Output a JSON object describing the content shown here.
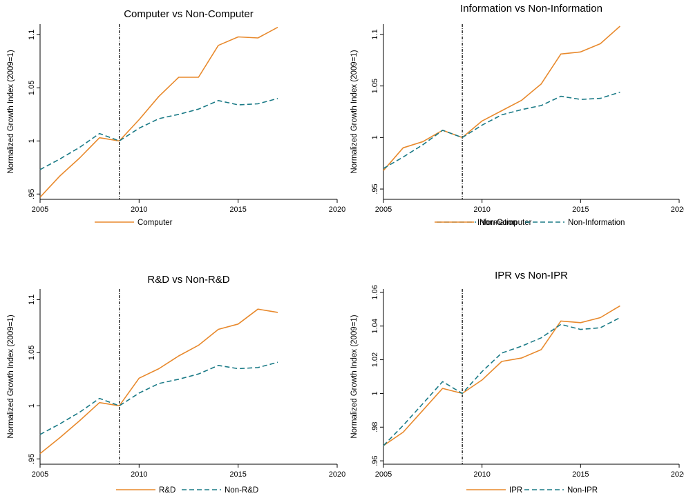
{
  "colors": {
    "series1": "#e8892c",
    "series2": "#1a7a86",
    "marker": "#000000"
  },
  "chart_data": [
    {
      "type": "line",
      "title": "Computer vs Non-Computer",
      "xlabel": "",
      "ylabel": "Normalized Growth Index (2009=1)",
      "xlim": [
        2005,
        2020
      ],
      "ylim": [
        0.945,
        1.11
      ],
      "xticks": [
        2005,
        2010,
        2015,
        2020
      ],
      "xtick_labels": [
        "2005",
        "2010",
        "2015",
        "2020"
      ],
      "yticks": [
        0.95,
        1,
        1.05,
        1.1
      ],
      "ytick_labels": [
        ".95",
        "1",
        "1.05",
        "1.1"
      ],
      "vline": 2009,
      "x": [
        2005,
        2006,
        2007,
        2008,
        2009,
        2010,
        2011,
        2012,
        2013,
        2014,
        2015,
        2016,
        2017
      ],
      "series": [
        {
          "name": "Computer",
          "style": "solid",
          "values": [
            0.947,
            0.967,
            0.984,
            1.003,
            1.0,
            1.02,
            1.042,
            1.06,
            1.06,
            1.09,
            1.098,
            1.097,
            1.107
          ]
        },
        {
          "name": "Non-Computer",
          "style": "dashed",
          "values": [
            0.973,
            0.983,
            0.994,
            1.007,
            1.0,
            1.012,
            1.021,
            1.025,
            1.03,
            1.038,
            1.034,
            1.035,
            1.04
          ]
        }
      ]
    },
    {
      "type": "line",
      "title": "Information vs Non-Information",
      "xlabel": "",
      "ylabel": "Normalized Growth Index (2009=1)",
      "xlim": [
        2005,
        2020
      ],
      "ylim": [
        0.94,
        1.11
      ],
      "xticks": [
        2005,
        2010,
        2015,
        2020
      ],
      "xtick_labels": [
        "2005",
        "2010",
        "2015",
        "2020"
      ],
      "yticks": [
        0.95,
        1,
        1.05,
        1.1
      ],
      "ytick_labels": [
        ".95",
        "1",
        "1.05",
        "1.1"
      ],
      "vline": 2009,
      "x": [
        2005,
        2006,
        2007,
        2008,
        2009,
        2010,
        2011,
        2012,
        2013,
        2014,
        2015,
        2016,
        2017
      ],
      "series": [
        {
          "name": "Information",
          "style": "solid",
          "values": [
            0.968,
            0.99,
            0.996,
            1.007,
            1.0,
            1.016,
            1.026,
            1.036,
            1.052,
            1.081,
            1.083,
            1.091,
            1.108
          ]
        },
        {
          "name": "Non-Information",
          "style": "dashed",
          "values": [
            0.97,
            0.981,
            0.993,
            1.007,
            1.0,
            1.012,
            1.022,
            1.027,
            1.031,
            1.04,
            1.037,
            1.038,
            1.044
          ]
        }
      ]
    },
    {
      "type": "line",
      "title": "R&D vs Non-R&D",
      "xlabel": "",
      "ylabel": "Normalized Growth Index (2009=1)",
      "xlim": [
        2005,
        2020
      ],
      "ylim": [
        0.945,
        1.11
      ],
      "xticks": [
        2005,
        2010,
        2015,
        2020
      ],
      "xtick_labels": [
        "2005",
        "2010",
        "2015",
        "2020"
      ],
      "yticks": [
        0.95,
        1,
        1.05,
        1.1
      ],
      "ytick_labels": [
        ".95",
        "1",
        "1.05",
        "1.1"
      ],
      "vline": 2009,
      "x": [
        2005,
        2006,
        2007,
        2008,
        2009,
        2010,
        2011,
        2012,
        2013,
        2014,
        2015,
        2016,
        2017
      ],
      "series": [
        {
          "name": "R&D",
          "style": "solid",
          "values": [
            0.955,
            0.97,
            0.986,
            1.003,
            1.0,
            1.026,
            1.035,
            1.047,
            1.057,
            1.072,
            1.077,
            1.091,
            1.088
          ]
        },
        {
          "name": "Non-R&D",
          "style": "dashed",
          "values": [
            0.973,
            0.983,
            0.994,
            1.007,
            1.0,
            1.012,
            1.021,
            1.025,
            1.03,
            1.038,
            1.035,
            1.036,
            1.041
          ]
        }
      ]
    },
    {
      "type": "line",
      "title": "IPR vs Non-IPR",
      "xlabel": "",
      "ylabel": "Normalized Growth Index (2009=1)",
      "xlim": [
        2005,
        2020
      ],
      "ylim": [
        0.958,
        1.062
      ],
      "xticks": [
        2005,
        2010,
        2015,
        2020
      ],
      "xtick_labels": [
        "2005",
        "2010",
        "2015",
        "2020"
      ],
      "yticks": [
        0.96,
        0.98,
        1,
        1.02,
        1.04,
        1.06
      ],
      "ytick_labels": [
        ".96",
        ".98",
        "1",
        "1.02",
        "1.04",
        "1.06"
      ],
      "vline": 2009,
      "x": [
        2005,
        2006,
        2007,
        2008,
        2009,
        2010,
        2011,
        2012,
        2013,
        2014,
        2015,
        2016,
        2017
      ],
      "series": [
        {
          "name": "IPR",
          "style": "solid",
          "values": [
            0.969,
            0.977,
            0.99,
            1.003,
            1.0,
            1.008,
            1.019,
            1.021,
            1.026,
            1.043,
            1.042,
            1.045,
            1.052
          ]
        },
        {
          "name": "Non-IPR",
          "style": "dashed",
          "values": [
            0.969,
            0.981,
            0.994,
            1.007,
            1.0,
            1.013,
            1.024,
            1.028,
            1.033,
            1.041,
            1.038,
            1.039,
            1.045
          ]
        }
      ]
    }
  ]
}
